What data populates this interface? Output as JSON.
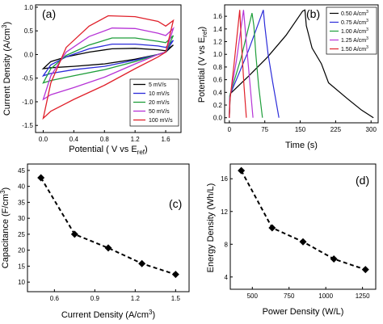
{
  "chart_data": [
    {
      "panel": "(a)",
      "type": "line",
      "xlabel": "Potential ( V vs E",
      "xlabel_sub": "ref",
      "xlabel_end": ")",
      "ylabel": "Current Density (A/cm",
      "ylabel_sup": "3",
      "ylabel_end": ")",
      "xlim": [
        -0.1,
        1.8
      ],
      "ylim": [
        -1.65,
        1.05
      ],
      "xticks": [
        "0.0",
        "0.4",
        "0.8",
        "1.2",
        "1.6"
      ],
      "yticks": [
        "-1.5",
        "-1.0",
        "-0.5",
        "0.0",
        "0.5",
        "1.0"
      ],
      "grid": false,
      "legend": "bottom-right",
      "series": [
        {
          "name": "5 mV/s",
          "color": "#000000",
          "upper": [
            [
              0.0,
              -0.3
            ],
            [
              0.1,
              -0.15
            ],
            [
              0.3,
              -0.05
            ],
            [
              0.6,
              0.05
            ],
            [
              0.9,
              0.12
            ],
            [
              1.2,
              0.13
            ],
            [
              1.5,
              0.1
            ],
            [
              1.6,
              0.08
            ],
            [
              1.7,
              0.2
            ]
          ],
          "lower": [
            [
              0.0,
              -0.3
            ],
            [
              0.1,
              -0.28
            ],
            [
              0.4,
              -0.25
            ],
            [
              0.8,
              -0.2
            ],
            [
              1.2,
              -0.1
            ],
            [
              1.5,
              0.0
            ],
            [
              1.6,
              0.05
            ],
            [
              1.7,
              0.2
            ]
          ]
        },
        {
          "name": "10 mV/s",
          "color": "#2b2bd9",
          "upper": [
            [
              0.0,
              -0.45
            ],
            [
              0.1,
              -0.22
            ],
            [
              0.3,
              -0.05
            ],
            [
              0.6,
              0.12
            ],
            [
              0.9,
              0.22
            ],
            [
              1.2,
              0.22
            ],
            [
              1.5,
              0.18
            ],
            [
              1.6,
              0.15
            ],
            [
              1.7,
              0.3
            ]
          ],
          "lower": [
            [
              0.0,
              -0.45
            ],
            [
              0.1,
              -0.4
            ],
            [
              0.4,
              -0.32
            ],
            [
              0.8,
              -0.25
            ],
            [
              1.2,
              -0.12
            ],
            [
              1.5,
              0.0
            ],
            [
              1.6,
              0.05
            ],
            [
              1.7,
              0.3
            ]
          ]
        },
        {
          "name": "20 mV/s",
          "color": "#1e9e3a",
          "upper": [
            [
              0.0,
              -0.6
            ],
            [
              0.1,
              -0.3
            ],
            [
              0.3,
              -0.02
            ],
            [
              0.6,
              0.2
            ],
            [
              0.9,
              0.35
            ],
            [
              1.2,
              0.35
            ],
            [
              1.5,
              0.28
            ],
            [
              1.6,
              0.25
            ],
            [
              1.7,
              0.4
            ]
          ],
          "lower": [
            [
              0.0,
              -0.6
            ],
            [
              0.1,
              -0.55
            ],
            [
              0.4,
              -0.45
            ],
            [
              0.8,
              -0.32
            ],
            [
              1.2,
              -0.15
            ],
            [
              1.5,
              0.0
            ],
            [
              1.6,
              0.05
            ],
            [
              1.7,
              0.4
            ]
          ]
        },
        {
          "name": "50 mV/s",
          "color": "#b633d6",
          "upper": [
            [
              0.0,
              -0.95
            ],
            [
              0.1,
              -0.45
            ],
            [
              0.3,
              0.05
            ],
            [
              0.6,
              0.38
            ],
            [
              0.9,
              0.56
            ],
            [
              1.2,
              0.55
            ],
            [
              1.5,
              0.45
            ],
            [
              1.6,
              0.4
            ],
            [
              1.7,
              0.55
            ]
          ],
          "lower": [
            [
              0.0,
              -0.95
            ],
            [
              0.1,
              -0.85
            ],
            [
              0.4,
              -0.7
            ],
            [
              0.8,
              -0.48
            ],
            [
              1.2,
              -0.2
            ],
            [
              1.5,
              0.0
            ],
            [
              1.6,
              0.05
            ],
            [
              1.7,
              0.55
            ]
          ]
        },
        {
          "name": "100 mV/s",
          "color": "#e0202a",
          "upper": [
            [
              0.0,
              -1.35
            ],
            [
              0.1,
              -0.6
            ],
            [
              0.3,
              0.15
            ],
            [
              0.6,
              0.6
            ],
            [
              0.85,
              0.82
            ],
            [
              1.2,
              0.8
            ],
            [
              1.5,
              0.7
            ],
            [
              1.6,
              0.6
            ],
            [
              1.7,
              0.72
            ]
          ],
          "lower": [
            [
              0.0,
              -1.35
            ],
            [
              0.1,
              -1.2
            ],
            [
              0.4,
              -0.95
            ],
            [
              0.8,
              -0.65
            ],
            [
              1.2,
              -0.3
            ],
            [
              1.5,
              -0.05
            ],
            [
              1.6,
              0.05
            ],
            [
              1.7,
              0.72
            ]
          ]
        }
      ]
    },
    {
      "panel": "(b)",
      "type": "line",
      "xlabel": "Time (s)",
      "ylabel": "Potential (V vs E",
      "ylabel_sub": "ref",
      "ylabel_end": ")",
      "xlim": [
        -10,
        315
      ],
      "ylim": [
        -0.08,
        1.78
      ],
      "xticks": [
        "0",
        "75",
        "150",
        "225",
        "300"
      ],
      "yticks": [
        "0.0",
        "0.2",
        "0.4",
        "0.6",
        "0.8",
        "1.0",
        "1.2",
        "1.4",
        "1.6"
      ],
      "grid": false,
      "legend": "top-right",
      "series": [
        {
          "name": "0.50 A/cm",
          "sup": "3",
          "color": "#000000",
          "points": [
            [
              0,
              0.0
            ],
            [
              2,
              0.38
            ],
            [
              40,
              0.65
            ],
            [
              80,
              0.95
            ],
            [
              120,
              1.3
            ],
            [
              155,
              1.68
            ],
            [
              160,
              1.7
            ],
            [
              163,
              1.45
            ],
            [
              175,
              1.1
            ],
            [
              195,
              0.85
            ],
            [
              210,
              0.55
            ],
            [
              250,
              0.3
            ],
            [
              280,
              0.12
            ],
            [
              305,
              0.0
            ]
          ]
        },
        {
          "name": "0.75 A/cm",
          "sup": "3",
          "color": "#2b2bd9",
          "points": [
            [
              0,
              0.0
            ],
            [
              1,
              0.35
            ],
            [
              40,
              1.05
            ],
            [
              72,
              1.7
            ],
            [
              75,
              1.45
            ],
            [
              82,
              1.0
            ],
            [
              92,
              0.55
            ],
            [
              105,
              0.0
            ]
          ]
        },
        {
          "name": "1.00 A/cm",
          "sup": "3",
          "color": "#1e9e3a",
          "points": [
            [
              0,
              0.0
            ],
            [
              1,
              0.35
            ],
            [
              25,
              0.95
            ],
            [
              48,
              1.65
            ],
            [
              52,
              1.45
            ],
            [
              56,
              1.0
            ],
            [
              62,
              0.5
            ],
            [
              70,
              0.0
            ]
          ]
        },
        {
          "name": "1.25 A/cm",
          "sup": "3",
          "color": "#b633d6",
          "points": [
            [
              0,
              0.0
            ],
            [
              1,
              0.3
            ],
            [
              15,
              0.9
            ],
            [
              30,
              1.7
            ],
            [
              33,
              1.45
            ],
            [
              38,
              1.0
            ],
            [
              44,
              0.5
            ],
            [
              50,
              0.0
            ]
          ]
        },
        {
          "name": "1.50 A/cm",
          "sup": "3",
          "color": "#e0202a",
          "points": [
            [
              0,
              0.0
            ],
            [
              1,
              0.25
            ],
            [
              10,
              0.85
            ],
            [
              22,
              1.7
            ],
            [
              24,
              1.4
            ],
            [
              27,
              1.0
            ],
            [
              31,
              0.5
            ],
            [
              36,
              0.0
            ]
          ]
        }
      ]
    },
    {
      "panel": "(c)",
      "type": "line",
      "xlabel": "Current Density (A/cm",
      "xlabel_sup": "3",
      "xlabel_end": ")",
      "ylabel": "Capacitance (F/cm",
      "ylabel_sup": "3",
      "ylabel_end": ")",
      "xlim": [
        0.4,
        1.6
      ],
      "ylim": [
        7,
        47
      ],
      "xticks": [
        "0.6",
        "0.9",
        "1.2",
        "1.5"
      ],
      "yticks": [
        "10",
        "15",
        "20",
        "25",
        "30",
        "35",
        "40",
        "45"
      ],
      "grid": false,
      "series": [
        {
          "x": [
            0.5,
            0.75,
            1.0,
            1.25,
            1.5
          ],
          "y": [
            42.7,
            25.0,
            20.7,
            15.8,
            12.4
          ]
        }
      ]
    },
    {
      "panel": "(d)",
      "type": "line",
      "xlabel": "Power Density (W/L)",
      "ylabel": "Energy Density (Wh/L)",
      "xlim": [
        350,
        1340
      ],
      "ylim": [
        2.5,
        17.8
      ],
      "xticks": [
        "500",
        "750",
        "1000",
        "1250"
      ],
      "yticks": [
        "4",
        "8",
        "12",
        "16"
      ],
      "grid": false,
      "series": [
        {
          "x": [
            425,
            635,
            845,
            1055,
            1270
          ],
          "y": [
            17.0,
            10.0,
            8.3,
            6.2,
            4.9
          ]
        }
      ]
    }
  ]
}
